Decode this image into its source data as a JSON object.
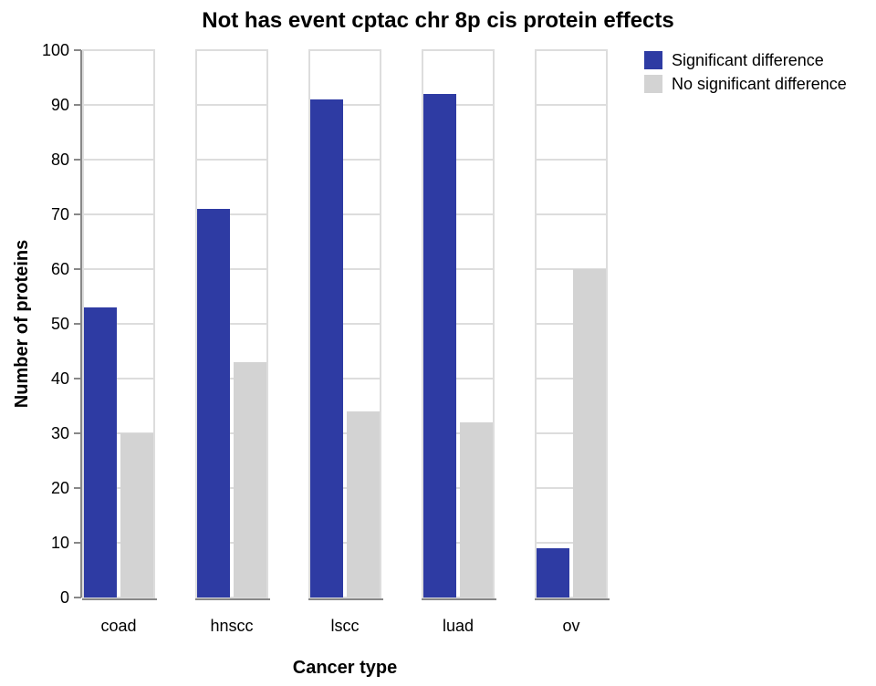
{
  "chart_data": {
    "type": "bar",
    "title": "Not has event cptac chr 8p cis protein effects",
    "xlabel": "Cancer type",
    "ylabel": "Number of proteins",
    "categories": [
      "coad",
      "hnscc",
      "lscc",
      "luad",
      "ov"
    ],
    "series": [
      {
        "name": "Significant difference",
        "values": [
          53,
          71,
          91,
          92,
          9
        ],
        "color": "#2e3ba3"
      },
      {
        "name": "No significant difference",
        "values": [
          30,
          43,
          34,
          32,
          60
        ],
        "color": "#d3d3d3"
      }
    ],
    "ylim": [
      0,
      100
    ],
    "yticks": [
      0,
      10,
      20,
      30,
      40,
      50,
      60,
      70,
      80,
      90,
      100
    ],
    "grid": true,
    "legend": "top-right"
  }
}
